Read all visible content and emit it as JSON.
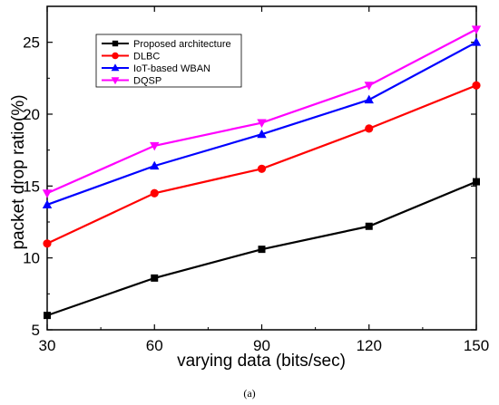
{
  "chart_data": {
    "type": "line",
    "x": [
      30,
      60,
      90,
      120,
      150
    ],
    "xlabel": "varying data (bits/sec)",
    "ylabel": "packet drop ratio(%)",
    "xlim": [
      30,
      150
    ],
    "ylim": [
      5,
      27.5
    ],
    "xticks": [
      "30",
      "60",
      "90",
      "120",
      "150"
    ],
    "yticks": [
      "5",
      "10",
      "15",
      "20",
      "25"
    ],
    "grid": false,
    "legend_position": "top-left",
    "series": [
      {
        "name": "Proposed architecture",
        "color": "#000000",
        "marker": "square",
        "values": [
          6.0,
          8.6,
          10.6,
          12.2,
          15.3
        ]
      },
      {
        "name": "DLBC",
        "color": "#ff0000",
        "marker": "circle",
        "values": [
          11.0,
          14.5,
          16.2,
          19.0,
          22.0
        ]
      },
      {
        "name": "IoT-based WBAN",
        "color": "#0000ff",
        "marker": "triangle-up",
        "values": [
          13.7,
          16.4,
          18.6,
          21.0,
          25.0
        ]
      },
      {
        "name": "DQSP",
        "color": "#ff00ff",
        "marker": "triangle-down",
        "values": [
          14.5,
          17.8,
          19.4,
          22.0,
          25.9
        ]
      }
    ]
  },
  "caption": "(a)"
}
